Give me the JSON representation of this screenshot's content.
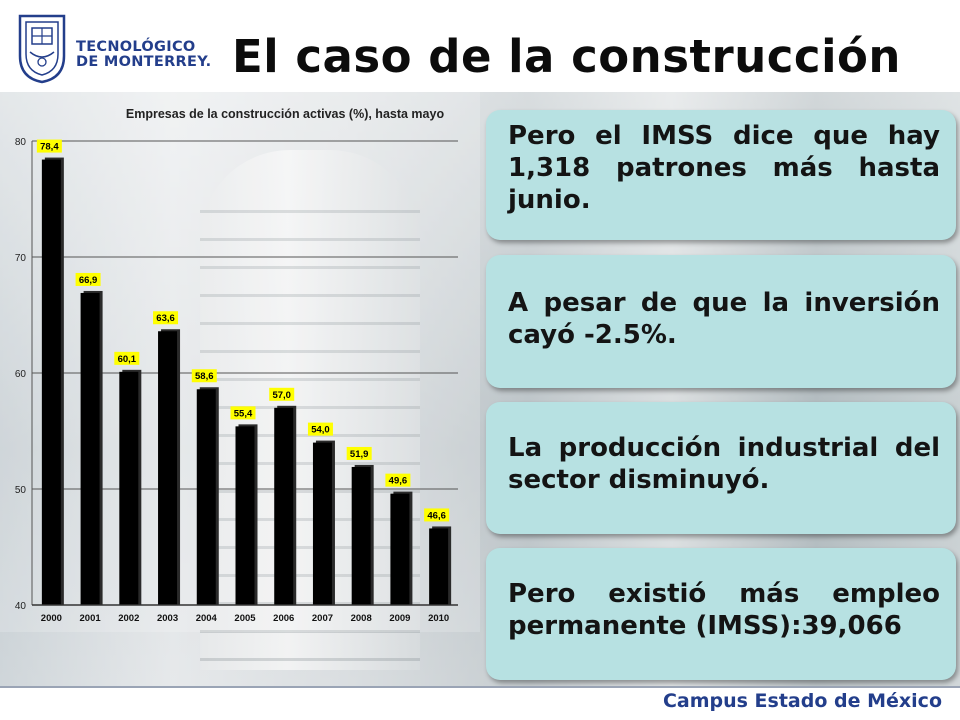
{
  "header": {
    "logo_line1": "TECNOLÓGICO",
    "logo_line2": "DE MONTERREY.",
    "title": "El caso de la construcción"
  },
  "colors": {
    "brand_blue": "#233e8b",
    "card_bg": "#b7e1e2",
    "bar_fill": "#000000",
    "label_bg": "#ffff00"
  },
  "icons": {
    "logo": "tec-de-monterrey-seal-icon"
  },
  "chart_data": {
    "type": "bar",
    "title": "Empresas de la construcción activas (%), hasta mayo",
    "xlabel": "",
    "ylabel": "",
    "categories": [
      "2000",
      "2001",
      "2002",
      "2003",
      "2004",
      "2005",
      "2006",
      "2007",
      "2008",
      "2009",
      "2010"
    ],
    "values": [
      78.4,
      66.9,
      60.1,
      63.6,
      58.6,
      55.4,
      57.0,
      54.0,
      51.9,
      49.6,
      46.6
    ],
    "data_labels": [
      "78,4",
      "66,9",
      "60,1",
      "63,6",
      "58,6",
      "55,4",
      "57,0",
      "54,0",
      "51,9",
      "49,6",
      "46,6"
    ],
    "y_ticks": [
      40,
      50,
      60,
      70,
      80
    ],
    "ylim": [
      40,
      80
    ],
    "grid": true,
    "legend": "none"
  },
  "cards": [
    "Pero el IMSS  dice que hay 1,318 patrones más hasta junio.",
    "A pesar de que la inversión cayó -2.5%.",
    "La producción industrial del sector disminuyó.",
    "Pero existió más empleo permanente (IMSS):39,066"
  ],
  "footer": {
    "campus": "Campus Estado de México"
  }
}
